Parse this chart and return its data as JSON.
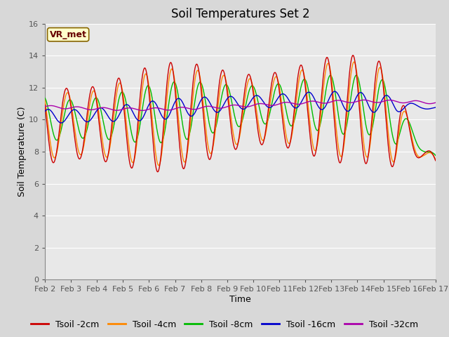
{
  "title": "Soil Temperatures Set 2",
  "xlabel": "Time",
  "ylabel": "Soil Temperature (C)",
  "ylim": [
    0,
    16
  ],
  "yticks": [
    0,
    2,
    4,
    6,
    8,
    10,
    12,
    14,
    16
  ],
  "xtick_labels": [
    "Feb 2",
    "Feb 3",
    "Feb 4",
    "Feb 5",
    "Feb 6",
    "Feb 7",
    "Feb 8",
    "Feb 9",
    "Feb 10",
    "Feb 11",
    "Feb 12",
    "Feb 13",
    "Feb 14",
    "Feb 15",
    "Feb 16",
    "Feb 17"
  ],
  "series": [
    {
      "label": "Tsoil -2cm",
      "color": "#cc0000"
    },
    {
      "label": "Tsoil -4cm",
      "color": "#ff8800"
    },
    {
      "label": "Tsoil -8cm",
      "color": "#00bb00"
    },
    {
      "label": "Tsoil -16cm",
      "color": "#0000cc"
    },
    {
      "label": "Tsoil -32cm",
      "color": "#aa00aa"
    }
  ],
  "fig_bg": "#d8d8d8",
  "plot_bg": "#e8e8e8",
  "grid_color": "#ffffff",
  "annotation_text": "VR_met",
  "annotation_fg": "#660000",
  "annotation_bg": "#ffffcc",
  "annotation_border": "#886600",
  "title_fontsize": 12,
  "axis_label_fontsize": 9,
  "tick_fontsize": 8,
  "legend_fontsize": 9
}
